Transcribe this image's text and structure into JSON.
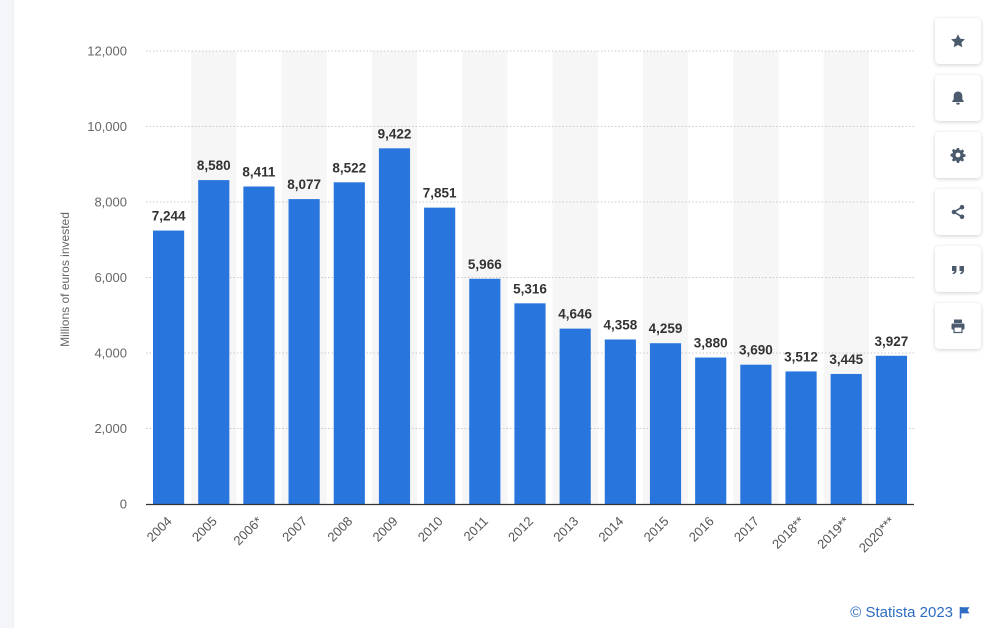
{
  "chart_data": {
    "type": "bar",
    "categories": [
      "2004",
      "2005",
      "2006*",
      "2007",
      "2008",
      "2009",
      "2010",
      "2011",
      "2012",
      "2013",
      "2014",
      "2015",
      "2016",
      "2017",
      "2018**",
      "2019**",
      "2020***"
    ],
    "values": [
      7244,
      8580,
      8411,
      8077,
      8522,
      9422,
      7851,
      5966,
      5316,
      4646,
      4358,
      4259,
      3880,
      3690,
      3512,
      3445,
      3927
    ],
    "data_labels": [
      "7,244",
      "8,580",
      "8,411",
      "8,077",
      "8,522",
      "9,422",
      "7,851",
      "5,966",
      "5,316",
      "4,646",
      "4,358",
      "4,259",
      "3,880",
      "3,690",
      "3,512",
      "3,445",
      "3,927"
    ],
    "y_ticks": [
      0,
      2000,
      4000,
      6000,
      8000,
      10000,
      12000
    ],
    "y_tick_labels": [
      "0",
      "2,000",
      "4,000",
      "6,000",
      "8,000",
      "10,000",
      "12,000"
    ],
    "ylim": [
      0,
      12000
    ],
    "ylabel": "Millions of euros invested",
    "xlabel": "",
    "title": "",
    "bar_color": "#2876dd",
    "grid": true,
    "legend": "none"
  },
  "toolbar": {
    "buttons": [
      {
        "name": "favorite-button",
        "icon": "star-icon"
      },
      {
        "name": "notification-button",
        "icon": "bell-icon"
      },
      {
        "name": "settings-button",
        "icon": "gear-icon"
      },
      {
        "name": "share-button",
        "icon": "share-icon"
      },
      {
        "name": "cite-button",
        "icon": "quote-icon"
      },
      {
        "name": "print-button",
        "icon": "print-icon"
      }
    ],
    "icon_color": "#4b5a6d"
  },
  "footer": {
    "credit": "© Statista 2023",
    "accent": "#2d6cc2"
  }
}
